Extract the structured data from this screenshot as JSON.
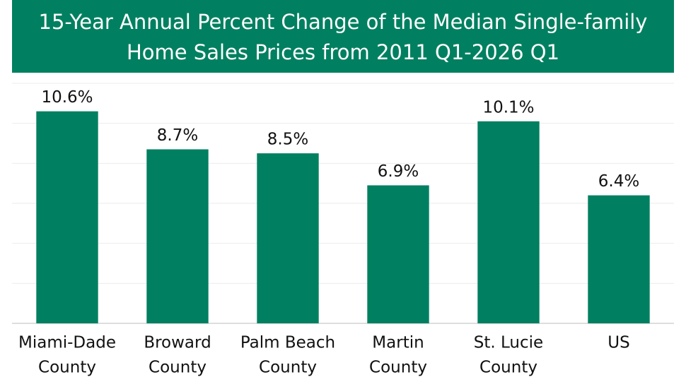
{
  "chart_data": {
    "type": "bar",
    "title": [
      "15-Year Annual Percent Change of the Median Single-family",
      "Home Sales Prices from 2011 Q1-2026 Q1"
    ],
    "categories": [
      [
        "Miami-Dade",
        "County"
      ],
      [
        "Broward",
        "County"
      ],
      [
        "Palm Beach",
        "County"
      ],
      [
        "Martin",
        "County"
      ],
      [
        "St. Lucie",
        "County"
      ],
      [
        "US"
      ]
    ],
    "values": [
      10.6,
      8.7,
      8.5,
      6.9,
      10.1,
      6.4
    ],
    "value_labels": [
      "10.6%",
      "8.7%",
      "8.5%",
      "6.9%",
      "10.1%",
      "6.4%"
    ],
    "color": "#008060",
    "ylim": [
      0,
      12
    ],
    "yticks": [
      0,
      2,
      4,
      6,
      8,
      10,
      12
    ],
    "grid": true
  }
}
